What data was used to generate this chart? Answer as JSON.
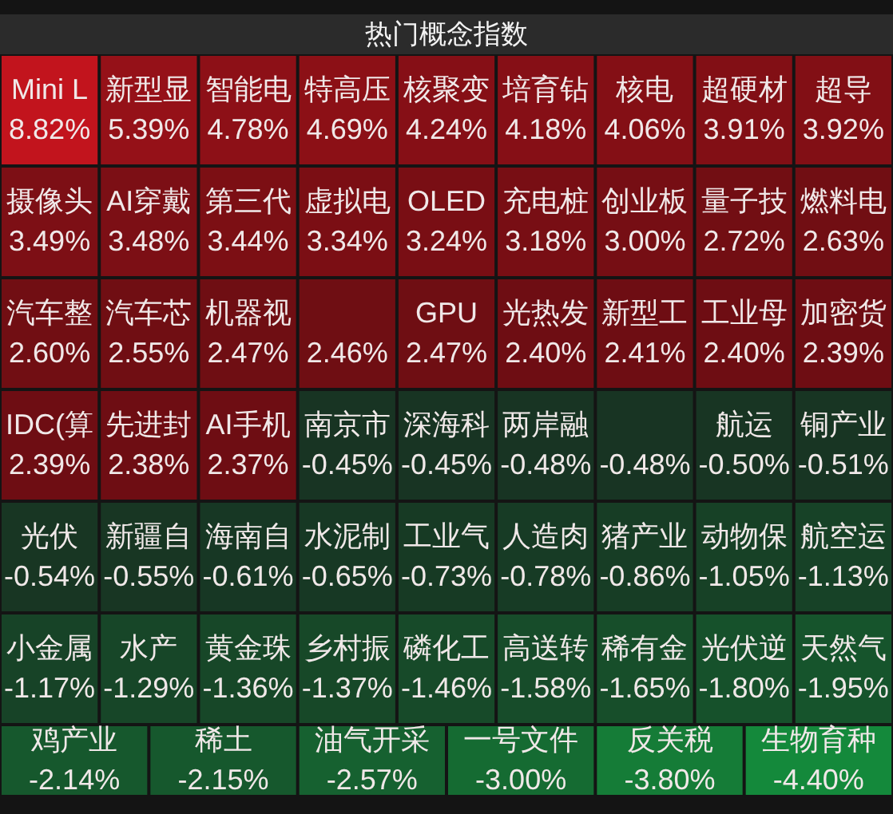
{
  "chart_data": {
    "type": "other",
    "title": "热门概念指数",
    "categories": [
      "Mini L",
      "新型显",
      "智能电",
      "特高压",
      "核聚变",
      "培育钻",
      "核电",
      "超硬材",
      "超导",
      "摄像头",
      "AI穿戴",
      "第三代",
      "虚拟电",
      "OLED",
      "充电桩",
      "创业板",
      "量子技",
      "燃料电",
      "汽车整",
      "汽车芯",
      "机器视",
      null,
      "GPU",
      "光热发",
      "新型工",
      "工业母",
      "加密货",
      "IDC(算",
      "先进封",
      "AI手机",
      "南京市",
      "深海科",
      "两岸融",
      null,
      "航运",
      "铜产业",
      "光伏",
      "新疆自",
      "海南自",
      "水泥制",
      "工业气",
      "人造肉",
      "猪产业",
      "动物保",
      "航空运",
      "小金属",
      "水产",
      "黄金珠",
      "乡村振",
      "磷化工",
      "高送转",
      "稀有金",
      "光伏逆",
      "天然气",
      "鸡产业",
      "稀土",
      "油气开采",
      "一号文件",
      "反关税",
      "生物育种"
    ],
    "values": [
      8.82,
      5.39,
      4.78,
      4.69,
      4.24,
      4.18,
      4.06,
      3.91,
      3.92,
      3.49,
      3.48,
      3.44,
      3.34,
      3.24,
      3.18,
      3.0,
      2.72,
      2.63,
      2.6,
      2.55,
      2.47,
      2.46,
      2.47,
      2.4,
      2.41,
      2.4,
      2.39,
      2.39,
      2.38,
      2.37,
      -0.45,
      -0.45,
      -0.48,
      -0.48,
      -0.5,
      -0.51,
      -0.54,
      -0.55,
      -0.61,
      -0.65,
      -0.73,
      -0.78,
      -0.86,
      -1.05,
      -1.13,
      -1.17,
      -1.29,
      -1.36,
      -1.37,
      -1.46,
      -1.58,
      -1.65,
      -1.8,
      -1.95,
      -2.14,
      -2.15,
      -2.57,
      -3.0,
      -3.8,
      -4.4
    ],
    "value_labels": [
      "8.82%",
      "5.39%",
      "4.78%",
      "4.69%",
      "4.24%",
      "4.18%",
      "4.06%",
      "3.91%",
      "3.92%",
      "3.49%",
      "3.48%",
      "3.44%",
      "3.34%",
      "3.24%",
      "3.18%",
      "3.00%",
      "2.72%",
      "2.63%",
      "2.60%",
      "2.55%",
      "2.47%",
      "2.46%",
      "2.47%",
      "2.40%",
      "2.41%",
      "2.40%",
      "2.39%",
      "2.39%",
      "2.38%",
      "2.37%",
      "-0.45%",
      "-0.45%",
      "-0.48%",
      "-0.48%",
      "-0.50%",
      "-0.51%",
      "-0.54%",
      "-0.55%",
      "-0.61%",
      "-0.65%",
      "-0.73%",
      "-0.78%",
      "-0.86%",
      "-1.05%",
      "-1.13%",
      "-1.17%",
      "-1.29%",
      "-1.36%",
      "-1.37%",
      "-1.46%",
      "-1.58%",
      "-1.65%",
      "-1.80%",
      "-1.95%",
      "-2.14%",
      "-2.15%",
      "-2.57%",
      "-3.00%",
      "-3.80%",
      "-4.40%"
    ]
  }
}
